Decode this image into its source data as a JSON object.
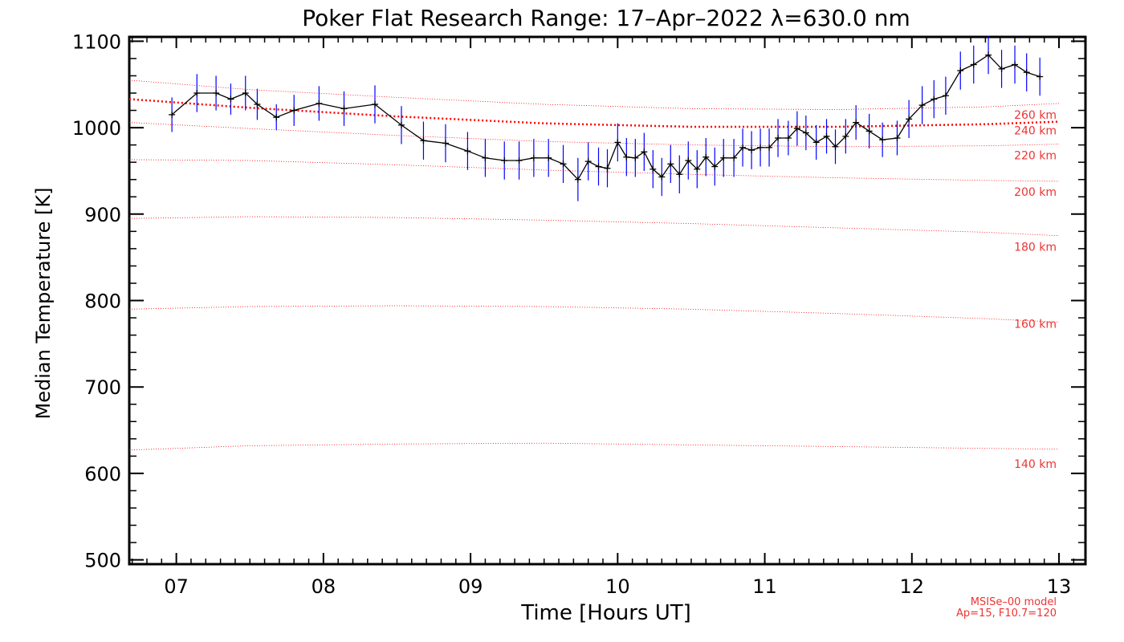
{
  "chart_data": {
    "type": "line",
    "title": "Poker Flat Research Range: 17–Apr–2022 λ=630.0 nm",
    "xlabel": "Time [Hours UT]",
    "ylabel": "Median Temperature [K]",
    "xlim": [
      6.68,
      13.18
    ],
    "ylim": [
      495,
      1105
    ],
    "xticks": [
      7,
      8,
      9,
      10,
      11,
      12,
      13
    ],
    "xtick_labels": [
      "07",
      "08",
      "09",
      "10",
      "11",
      "12",
      "13"
    ],
    "yticks": [
      500,
      600,
      700,
      800,
      900,
      1000,
      1100
    ],
    "ytick_labels": [
      "500",
      "600",
      "700",
      "800",
      "900",
      "1000",
      "1100"
    ],
    "grid": false,
    "series": [
      {
        "name": "Median Temperature",
        "color": "#000000",
        "errorbar_color": "#0000ff",
        "x": [
          6.97,
          7.14,
          7.27,
          7.37,
          7.47,
          7.55,
          7.68,
          7.8,
          7.97,
          8.14,
          8.35,
          8.53,
          8.68,
          8.83,
          8.98,
          9.1,
          9.23,
          9.33,
          9.43,
          9.53,
          9.63,
          9.73,
          9.8,
          9.87,
          9.93,
          10.0,
          10.06,
          10.12,
          10.18,
          10.24,
          10.3,
          10.36,
          10.42,
          10.48,
          10.54,
          10.6,
          10.66,
          10.72,
          10.79,
          10.85,
          10.91,
          10.97,
          11.03,
          11.09,
          11.16,
          11.22,
          11.28,
          11.35,
          11.42,
          11.48,
          11.55,
          11.62,
          11.71,
          11.8,
          11.9,
          11.98,
          12.07,
          12.15,
          12.23,
          12.33,
          12.42,
          12.52,
          12.61,
          12.7,
          12.78,
          12.87
        ],
        "values": [
          1015,
          1040,
          1040,
          1033,
          1040,
          1027,
          1012,
          1020,
          1028,
          1022,
          1027,
          1003,
          985,
          982,
          973,
          965,
          962,
          962,
          965,
          965,
          958,
          940,
          961,
          955,
          953,
          983,
          966,
          965,
          972,
          952,
          943,
          958,
          946,
          962,
          952,
          966,
          955,
          965,
          965,
          977,
          974,
          977,
          977,
          988,
          988,
          999,
          994,
          983,
          990,
          978,
          990,
          1006,
          996,
          986,
          988,
          1010,
          1026,
          1033,
          1037,
          1066,
          1073,
          1084,
          1068,
          1073,
          1064,
          1059
        ],
        "errors": [
          20,
          22,
          20,
          18,
          20,
          18,
          15,
          18,
          20,
          20,
          22,
          22,
          22,
          22,
          22,
          22,
          22,
          22,
          22,
          22,
          22,
          25,
          22,
          22,
          22,
          22,
          22,
          22,
          22,
          22,
          22,
          22,
          22,
          22,
          22,
          22,
          22,
          22,
          22,
          22,
          22,
          22,
          22,
          22,
          20,
          20,
          20,
          20,
          20,
          20,
          20,
          20,
          20,
          20,
          20,
          22,
          22,
          22,
          22,
          22,
          22,
          22,
          22,
          22,
          22,
          22
        ]
      }
    ],
    "model_curves": {
      "color": "#ff0000",
      "x": [
        6.68,
        7.5,
        8.5,
        9.5,
        10.5,
        11.5,
        12.5,
        13.0
      ],
      "curves": [
        {
          "label": "140 km",
          "label_y": 611,
          "values": [
            627,
            632,
            634,
            635,
            633,
            631,
            629,
            628
          ]
        },
        {
          "label": "160 km",
          "label_y": 773,
          "values": [
            790,
            793,
            794,
            793,
            790,
            785,
            779,
            775
          ]
        },
        {
          "label": "180 km",
          "label_y": 862,
          "values": [
            895,
            897,
            896,
            893,
            889,
            884,
            879,
            875
          ]
        },
        {
          "label": "200 km",
          "label_y": 926,
          "values": [
            963,
            962,
            957,
            951,
            946,
            942,
            939,
            938
          ]
        },
        {
          "label": "220 km",
          "label_y": 968,
          "values": [
            1006,
            999,
            991,
            984,
            980,
            978,
            979,
            981
          ]
        },
        {
          "label": "240 km",
          "label_y": 997,
          "bold": true,
          "values": [
            1033,
            1023,
            1013,
            1005,
            1001,
            1001,
            1004,
            1007
          ]
        },
        {
          "label": "260 km",
          "label_y": 1015,
          "values": [
            1055,
            1044,
            1035,
            1027,
            1022,
            1021,
            1024,
            1028
          ]
        }
      ]
    }
  },
  "model_note": {
    "line1": "MSISe–00 model",
    "line2": "Ap=15, F10.7=120"
  }
}
